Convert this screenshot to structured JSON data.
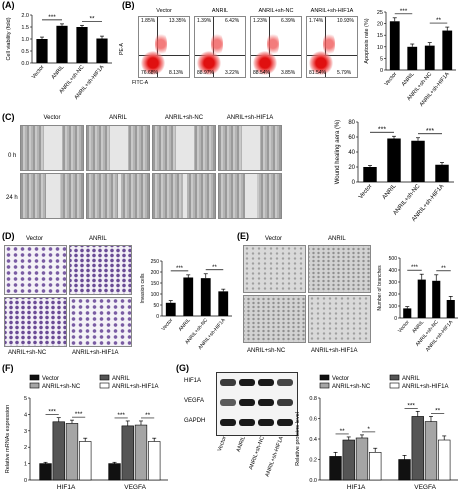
{
  "panels": {
    "A": "(A)",
    "B": "(B)",
    "C": "(C)",
    "D": "(D)",
    "E": "(E)",
    "F": "(F)",
    "G": "(G)"
  },
  "groups": [
    "Vector",
    "ANRIL",
    "ANRIL+sh-NC",
    "ANRIL+sh-HIF1A"
  ],
  "flow": {
    "titles": [
      "Vector",
      "ANRIL",
      "ANRIL+sh-NC",
      "ANRIL+sh-HIF1A"
    ],
    "quadrants": [
      [
        "1.85%",
        "13.35%",
        "76.68%",
        "8.13%"
      ],
      [
        "1.39%",
        "6.42%",
        "88.97%",
        "3.22%"
      ],
      [
        "1.23%",
        "6.39%",
        "88.54%",
        "3.85%"
      ],
      [
        "1.74%",
        "10.93%",
        "81.54%",
        "5.79%"
      ]
    ],
    "ylab": "PE-A",
    "xlab": "FITC-A"
  },
  "wound": {
    "titles": [
      "Vector",
      "ANRIL",
      "ANRIL+sh-NC",
      "ANRIL+sh-HIF1A"
    ],
    "rows": [
      "0 h",
      "24 h"
    ]
  },
  "transwell": {
    "titles": [
      "Vector",
      "ANRIL",
      "ANRIL+sh-NC",
      "ANRIL+sh-HIF1A"
    ]
  },
  "tube": {
    "titles": [
      "Vector",
      "ANRIL",
      "ANRIL+sh-NC",
      "ANRIL+sh-HIF1A"
    ]
  },
  "western": {
    "proteins": [
      "HIF1A",
      "VEGFA",
      "GAPDH"
    ]
  },
  "chart_data": [
    {
      "panel": "A",
      "type": "bar",
      "categories": [
        "Vector",
        "ANRIL",
        "ANRIL+sh-NC",
        "ANRIL+sh-HIF1A"
      ],
      "values": [
        1.0,
        1.55,
        1.5,
        1.02
      ],
      "errors": [
        0.08,
        0.08,
        0.07,
        0.1
      ],
      "ylabel": "Cell viability (fold)",
      "ylim": [
        0,
        2.0
      ],
      "yticks": [
        "0.0",
        "0.5",
        "1.0",
        "1.5",
        "2.0"
      ],
      "sig": [
        {
          "from": 0,
          "to": 1,
          "label": "***"
        },
        {
          "from": 2,
          "to": 3,
          "label": "**"
        }
      ]
    },
    {
      "panel": "B",
      "type": "bar",
      "categories": [
        "Vector",
        "ANRIL",
        "ANRIL+sh-NC",
        "ANRIL+sh-HIF1A"
      ],
      "values": [
        21,
        10,
        10.5,
        17
      ],
      "errors": [
        1.5,
        1.2,
        1.3,
        1.5
      ],
      "ylabel": "Apoptosis rate (%)",
      "ylim": [
        0,
        25
      ],
      "yticks": [
        "0",
        "5",
        "10",
        "15",
        "20",
        "25"
      ],
      "sig": [
        {
          "from": 0,
          "to": 1,
          "label": "***"
        },
        {
          "from": 2,
          "to": 3,
          "label": "**"
        }
      ]
    },
    {
      "panel": "C",
      "type": "bar",
      "categories": [
        "Vector",
        "ANRIL",
        "ANRIL+sh-NC",
        "ANRIL+sh-HIF1A"
      ],
      "values": [
        20,
        58,
        55,
        23
      ],
      "errors": [
        2,
        3,
        4,
        3
      ],
      "ylabel": "Wound healing aera (%)",
      "ylim": [
        0,
        80
      ],
      "yticks": [
        "0",
        "20",
        "40",
        "60",
        "80"
      ],
      "sig": [
        {
          "from": 0,
          "to": 1,
          "label": "***"
        },
        {
          "from": 2,
          "to": 3,
          "label": "***"
        }
      ]
    },
    {
      "panel": "D",
      "type": "bar",
      "categories": [
        "Vector",
        "ANRIL",
        "ANRIL+sh-NC",
        "ANRIL+sh-HIF1A"
      ],
      "values": [
        60,
        175,
        172,
        112
      ],
      "errors": [
        10,
        12,
        20,
        10
      ],
      "ylabel": "Invasion cells",
      "ylim": [
        0,
        250
      ],
      "yticks": [
        "0",
        "50",
        "100",
        "150",
        "200",
        "250"
      ],
      "sig": [
        {
          "from": 0,
          "to": 1,
          "label": "***"
        },
        {
          "from": 2,
          "to": 3,
          "label": "**"
        }
      ]
    },
    {
      "panel": "E",
      "type": "bar",
      "categories": [
        "Vector",
        "ANRIL",
        "ANRIL+sh-NC",
        "ANRIL+sh-HIF1A"
      ],
      "values": [
        80,
        320,
        310,
        150
      ],
      "errors": [
        15,
        45,
        50,
        30
      ],
      "ylabel": "Number of branches",
      "ylim": [
        0,
        500
      ],
      "yticks": [
        "0",
        "100",
        "200",
        "300",
        "400",
        "500"
      ],
      "sig": [
        {
          "from": 0,
          "to": 1,
          "label": "***"
        },
        {
          "from": 2,
          "to": 3,
          "label": "**"
        }
      ]
    },
    {
      "panel": "F",
      "type": "bar",
      "categories": [
        "HIF1A",
        "VEGFA"
      ],
      "series": [
        {
          "name": "Vector",
          "values": [
            1.0,
            1.0
          ],
          "errors": [
            0.08,
            0.08
          ],
          "color": "#111111"
        },
        {
          "name": "ANRIL",
          "values": [
            3.55,
            3.3
          ],
          "errors": [
            0.25,
            0.3
          ],
          "color": "#555555"
        },
        {
          "name": "ANRIL+sh-NC",
          "values": [
            3.45,
            3.35
          ],
          "errors": [
            0.2,
            0.25
          ],
          "color": "#a5a5a5"
        },
        {
          "name": "ANRIL+sh-HIF1A",
          "values": [
            2.35,
            2.35
          ],
          "errors": [
            0.2,
            0.2
          ],
          "color": "#ffffff"
        }
      ],
      "ylabel": "Relative mRNAs expression",
      "ylim": [
        0,
        5
      ],
      "yticks": [
        "0",
        "1",
        "2",
        "3",
        "4",
        "5"
      ],
      "sig": [
        "***",
        "***",
        "***",
        "**"
      ]
    },
    {
      "panel": "G",
      "type": "bar",
      "categories": [
        "HIF1A",
        "VEGFA"
      ],
      "series": [
        {
          "name": "Vector",
          "values": [
            0.23,
            0.2
          ],
          "errors": [
            0.04,
            0.04
          ],
          "color": "#111111"
        },
        {
          "name": "ANRIL",
          "values": [
            0.39,
            0.62
          ],
          "errors": [
            0.03,
            0.05
          ],
          "color": "#555555"
        },
        {
          "name": "ANRIL+sh-NC",
          "values": [
            0.41,
            0.57
          ],
          "errors": [
            0.03,
            0.05
          ],
          "color": "#a5a5a5"
        },
        {
          "name": "ANRIL+sh-HIF1A",
          "values": [
            0.27,
            0.39
          ],
          "errors": [
            0.04,
            0.04
          ],
          "color": "#ffffff"
        }
      ],
      "ylabel": "Relative proteins level",
      "ylim": [
        0,
        0.8
      ],
      "yticks": [
        "0.0",
        "0.2",
        "0.4",
        "0.6",
        "0.8"
      ],
      "sig": [
        "**",
        "*",
        "***",
        "**"
      ]
    }
  ]
}
